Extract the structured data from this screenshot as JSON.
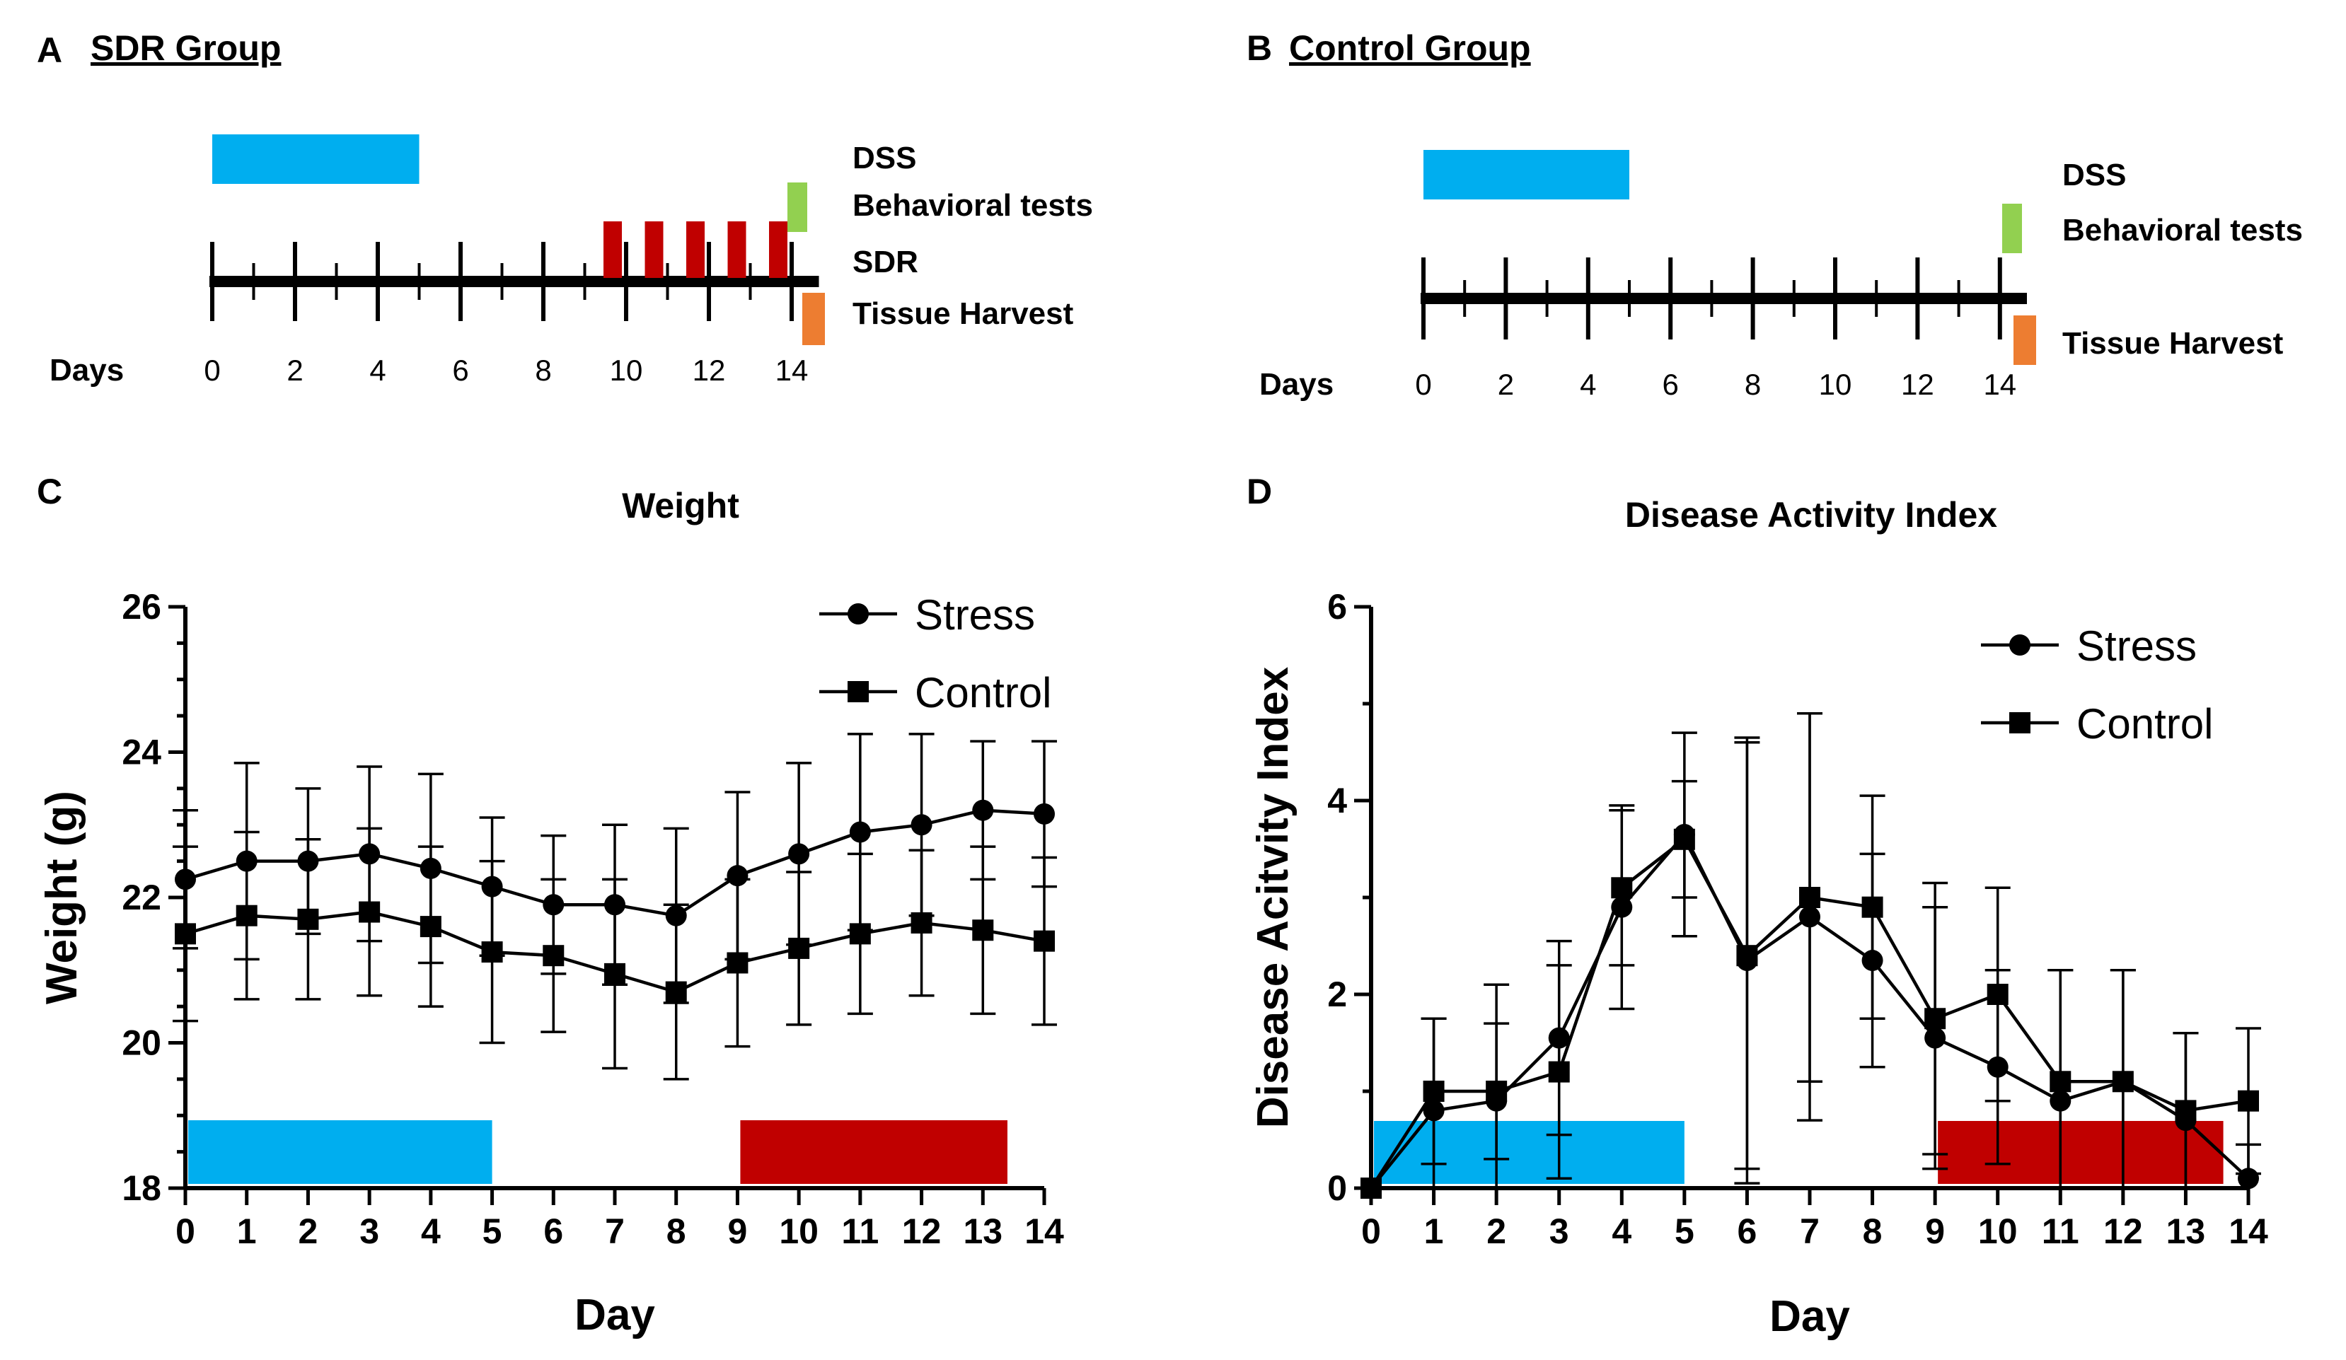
{
  "panelA": {
    "letter": "A",
    "title": "SDR Group",
    "days_label": "Days",
    "ticks": [
      "0",
      "2",
      "4",
      "6",
      "8",
      "10",
      "12",
      "14"
    ],
    "legend": [
      "DSS",
      "Behavioral tests",
      "SDR",
      "Tissue Harvest"
    ]
  },
  "panelB": {
    "letter": "B",
    "title": "Control Group",
    "days_label": "Days",
    "ticks": [
      "0",
      "2",
      "4",
      "6",
      "8",
      "10",
      "12",
      "14"
    ],
    "legend": [
      "DSS",
      "Behavioral tests",
      "Tissue Harvest"
    ]
  },
  "colors": {
    "dss": "#00AEEF",
    "sdr": "#C00000",
    "behavior": "#92D050",
    "harvest": "#ED7D31",
    "ink": "#000000"
  },
  "chart_data": [
    {
      "panel": "C",
      "type": "line",
      "title": "Weight",
      "xlabel": "Day",
      "ylabel": "Weight (g)",
      "x": [
        0,
        1,
        2,
        3,
        4,
        5,
        6,
        7,
        8,
        9,
        10,
        11,
        12,
        13,
        14
      ],
      "xlim": [
        0,
        14
      ],
      "ylim": [
        18,
        26
      ],
      "yticks": [
        18,
        20,
        22,
        24,
        26
      ],
      "series": [
        {
          "name": "Stress",
          "marker": "circle",
          "values": [
            22.25,
            22.5,
            22.5,
            22.6,
            22.4,
            22.15,
            21.9,
            21.9,
            21.75,
            22.3,
            22.6,
            22.9,
            23.0,
            23.2,
            23.15
          ],
          "errors": [
            0.95,
            1.35,
            1.0,
            1.2,
            1.3,
            0.95,
            0.95,
            1.1,
            1.2,
            1.15,
            1.25,
            1.35,
            1.25,
            0.95,
            1.0
          ]
        },
        {
          "name": "Control",
          "marker": "square",
          "values": [
            21.5,
            21.75,
            21.7,
            21.8,
            21.6,
            21.25,
            21.2,
            20.95,
            20.7,
            21.1,
            21.3,
            21.5,
            21.65,
            21.55,
            21.4
          ],
          "errors": [
            1.2,
            1.15,
            1.1,
            1.15,
            1.1,
            1.25,
            1.05,
            1.3,
            1.2,
            1.15,
            1.05,
            1.1,
            1.0,
            1.15,
            1.15
          ]
        }
      ],
      "bars": [
        {
          "label": "DSS",
          "color": "dss",
          "from": 0,
          "to": 5
        },
        {
          "label": "SDR",
          "color": "sdr",
          "from": 9,
          "to": 13.4
        }
      ],
      "legend_position": "top-right",
      "legend": [
        "Stress",
        "Control"
      ]
    },
    {
      "panel": "D",
      "type": "line",
      "title": "Disease Activity Index",
      "xlabel": "Day",
      "ylabel": "Disease Acitvity Index",
      "x": [
        0,
        1,
        2,
        3,
        4,
        5,
        6,
        7,
        8,
        9,
        10,
        11,
        12,
        13,
        14
      ],
      "xlim": [
        0,
        14
      ],
      "ylim": [
        0,
        6
      ],
      "yticks": [
        0,
        2,
        4,
        6
      ],
      "series": [
        {
          "name": "Stress",
          "marker": "circle",
          "values": [
            0,
            0.8,
            0.9,
            1.55,
            2.9,
            3.65,
            2.35,
            2.8,
            2.35,
            1.55,
            1.25,
            0.9,
            1.1,
            0.7,
            0.1
          ],
          "errors": [
            0,
            0.95,
            1.2,
            1.0,
            1.05,
            1.05,
            2.3,
            2.1,
            1.1,
            1.35,
            1.0,
            1.35,
            1.15,
            0.9,
            0.35
          ]
        },
        {
          "name": "Control",
          "marker": "square",
          "values": [
            0,
            1.0,
            1.0,
            1.2,
            3.1,
            3.6,
            2.4,
            3.0,
            2.9,
            1.75,
            2.0,
            1.1,
            1.1,
            0.8,
            0.9
          ],
          "errors": [
            0,
            0.75,
            0.7,
            1.1,
            0.8,
            0.6,
            2.2,
            1.9,
            1.15,
            1.4,
            1.1,
            1.15,
            1.15,
            0.8,
            0.75
          ]
        }
      ],
      "bars": [
        {
          "label": "DSS",
          "color": "dss",
          "from": 0,
          "to": 5
        },
        {
          "label": "SDR",
          "color": "sdr",
          "from": 9,
          "to": 13.6
        }
      ],
      "legend_position": "top-right",
      "legend": [
        "Stress",
        "Control"
      ]
    }
  ]
}
